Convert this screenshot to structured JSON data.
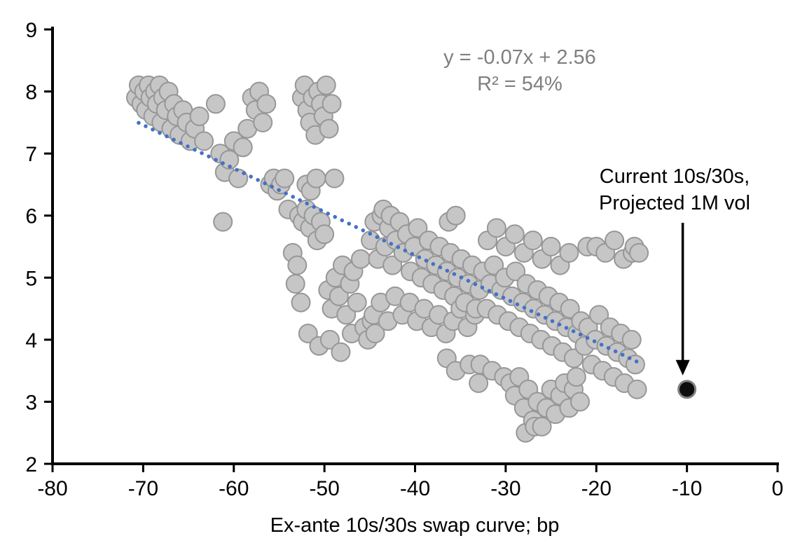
{
  "chart_data": {
    "type": "scatter",
    "title": "",
    "xlabel": "Ex-ante 10s/30s swap curve; bp",
    "ylabel": "",
    "xlim": [
      -80,
      0
    ],
    "ylim": [
      2,
      9
    ],
    "x_ticks": [
      "-80",
      "-70",
      "-60",
      "-50",
      "-40",
      "-30",
      "-20",
      "-10",
      "0"
    ],
    "x_tick_values": [
      -80,
      -70,
      -60,
      -50,
      -40,
      -30,
      -20,
      -10,
      0
    ],
    "y_ticks": [
      "2",
      "3",
      "4",
      "5",
      "6",
      "7",
      "8",
      "9"
    ],
    "y_tick_values": [
      2,
      3,
      4,
      5,
      6,
      7,
      8,
      9
    ],
    "grid": false,
    "legend": "none",
    "series": [
      {
        "name": "historical-observations",
        "marker": {
          "fill": "#c6c6c6",
          "stroke": "#979797",
          "stroke_width": 2,
          "radius": 13
        },
        "points": [
          [
            -70.8,
            7.9
          ],
          [
            -70.5,
            8.1
          ],
          [
            -70.2,
            7.8
          ],
          [
            -69.9,
            8.0
          ],
          [
            -69.7,
            7.7
          ],
          [
            -69.4,
            8.1
          ],
          [
            -69.2,
            7.9
          ],
          [
            -68.9,
            7.6
          ],
          [
            -68.7,
            8.0
          ],
          [
            -68.5,
            7.8
          ],
          [
            -68.2,
            8.1
          ],
          [
            -68.0,
            7.5
          ],
          [
            -67.8,
            7.9
          ],
          [
            -67.5,
            7.7
          ],
          [
            -67.2,
            8.0
          ],
          [
            -66.9,
            7.4
          ],
          [
            -66.6,
            7.8
          ],
          [
            -66.3,
            7.6
          ],
          [
            -66.0,
            7.3
          ],
          [
            -65.6,
            7.7
          ],
          [
            -65.2,
            7.5
          ],
          [
            -64.8,
            7.2
          ],
          [
            -64.3,
            7.4
          ],
          [
            -63.8,
            7.6
          ],
          [
            -63.3,
            7.2
          ],
          [
            -62.0,
            7.8
          ],
          [
            -61.5,
            7.0
          ],
          [
            -61.2,
            5.9
          ],
          [
            -61.0,
            6.7
          ],
          [
            -60.5,
            6.9
          ],
          [
            -60.0,
            7.2
          ],
          [
            -59.5,
            6.6
          ],
          [
            -59.0,
            7.1
          ],
          [
            -58.5,
            7.4
          ],
          [
            -58.0,
            7.9
          ],
          [
            -57.6,
            7.7
          ],
          [
            -57.2,
            8.0
          ],
          [
            -56.8,
            7.5
          ],
          [
            -56.4,
            7.8
          ],
          [
            -56.0,
            6.5
          ],
          [
            -55.6,
            6.6
          ],
          [
            -55.2,
            6.4
          ],
          [
            -54.8,
            6.5
          ],
          [
            -54.4,
            6.6
          ],
          [
            -54.0,
            6.1
          ],
          [
            -52.5,
            7.9
          ],
          [
            -52.2,
            8.1
          ],
          [
            -51.9,
            7.7
          ],
          [
            -51.6,
            7.5
          ],
          [
            -51.3,
            7.9
          ],
          [
            -51.0,
            7.3
          ],
          [
            -50.7,
            8.0
          ],
          [
            -50.4,
            7.8
          ],
          [
            -50.1,
            7.6
          ],
          [
            -49.8,
            8.1
          ],
          [
            -49.5,
            7.4
          ],
          [
            -49.2,
            7.8
          ],
          [
            -48.9,
            6.6
          ],
          [
            -52.0,
            6.5
          ],
          [
            -51.5,
            6.4
          ],
          [
            -50.9,
            6.6
          ],
          [
            -53.5,
            5.4
          ],
          [
            -53.2,
            4.9
          ],
          [
            -53.0,
            5.2
          ],
          [
            -52.8,
            6.0
          ],
          [
            -52.6,
            4.6
          ],
          [
            -52.4,
            5.9
          ],
          [
            -52.0,
            6.1
          ],
          [
            -51.8,
            4.1
          ],
          [
            -51.6,
            5.8
          ],
          [
            -51.2,
            6.0
          ],
          [
            -50.8,
            5.6
          ],
          [
            -50.6,
            3.9
          ],
          [
            -50.4,
            5.9
          ],
          [
            -50.0,
            5.7
          ],
          [
            -49.6,
            4.8
          ],
          [
            -49.4,
            4.0
          ],
          [
            -49.2,
            4.5
          ],
          [
            -48.8,
            5.0
          ],
          [
            -48.4,
            4.7
          ],
          [
            -48.2,
            3.8
          ],
          [
            -48.0,
            5.2
          ],
          [
            -47.6,
            4.4
          ],
          [
            -47.2,
            4.9
          ],
          [
            -47.0,
            4.1
          ],
          [
            -46.8,
            5.1
          ],
          [
            -46.4,
            4.6
          ],
          [
            -46.0,
            5.3
          ],
          [
            -45.6,
            4.2
          ],
          [
            -45.2,
            4.0
          ],
          [
            -44.8,
            4.3
          ],
          [
            -44.4,
            4.1
          ],
          [
            -44.9,
            5.6
          ],
          [
            -44.6,
            4.4
          ],
          [
            -44.5,
            5.9
          ],
          [
            -44.1,
            5.3
          ],
          [
            -43.8,
            4.6
          ],
          [
            -43.7,
            6.0
          ],
          [
            -43.5,
            6.1
          ],
          [
            -43.3,
            5.5
          ],
          [
            -43.0,
            4.3
          ],
          [
            -42.9,
            5.8
          ],
          [
            -42.7,
            6.0
          ],
          [
            -42.5,
            5.2
          ],
          [
            -42.2,
            4.7
          ],
          [
            -42.1,
            5.6
          ],
          [
            -41.7,
            5.9
          ],
          [
            -41.4,
            4.4
          ],
          [
            -41.3,
            5.4
          ],
          [
            -40.9,
            5.7
          ],
          [
            -40.6,
            4.6
          ],
          [
            -40.5,
            5.1
          ],
          [
            -40.1,
            5.5
          ],
          [
            -39.8,
            4.3
          ],
          [
            -39.7,
            5.8
          ],
          [
            -39.3,
            5.0
          ],
          [
            -39.0,
            4.5
          ],
          [
            -38.9,
            5.3
          ],
          [
            -38.5,
            5.6
          ],
          [
            -38.2,
            4.2
          ],
          [
            -38.1,
            4.9
          ],
          [
            -37.7,
            5.2
          ],
          [
            -37.4,
            4.4
          ],
          [
            -37.3,
            5.5
          ],
          [
            -36.9,
            4.8
          ],
          [
            -36.6,
            4.1
          ],
          [
            -36.5,
            5.1
          ],
          [
            -36.3,
            5.9
          ],
          [
            -36.1,
            5.4
          ],
          [
            -35.8,
            4.3
          ],
          [
            -35.7,
            4.7
          ],
          [
            -35.5,
            6.0
          ],
          [
            -35.3,
            5.0
          ],
          [
            -35.0,
            4.5
          ],
          [
            -34.9,
            5.3
          ],
          [
            -34.5,
            4.6
          ],
          [
            -34.2,
            4.2
          ],
          [
            -34.1,
            4.9
          ],
          [
            -33.7,
            5.2
          ],
          [
            -33.4,
            4.4
          ],
          [
            -33.3,
            4.5
          ],
          [
            -36.5,
            3.7
          ],
          [
            -35.5,
            3.5
          ],
          [
            -34.0,
            3.6
          ],
          [
            -33.0,
            3.3
          ],
          [
            -32.8,
            3.6
          ],
          [
            -31.5,
            3.5
          ],
          [
            -32.9,
            4.8
          ],
          [
            -32.5,
            5.1
          ],
          [
            -32.1,
            4.5
          ],
          [
            -32.0,
            5.6
          ],
          [
            -31.7,
            4.9
          ],
          [
            -31.3,
            5.2
          ],
          [
            -31.0,
            5.8
          ],
          [
            -30.9,
            4.4
          ],
          [
            -30.5,
            4.8
          ],
          [
            -30.1,
            5.0
          ],
          [
            -30.0,
            5.5
          ],
          [
            -29.7,
            4.3
          ],
          [
            -29.3,
            4.7
          ],
          [
            -29.0,
            5.7
          ],
          [
            -28.9,
            5.1
          ],
          [
            -28.5,
            4.2
          ],
          [
            -28.1,
            4.6
          ],
          [
            -28.0,
            5.4
          ],
          [
            -27.7,
            4.9
          ],
          [
            -27.3,
            4.1
          ],
          [
            -27.0,
            5.6
          ],
          [
            -26.9,
            4.5
          ],
          [
            -26.5,
            4.8
          ],
          [
            -26.1,
            4.0
          ],
          [
            -26.0,
            5.3
          ],
          [
            -25.7,
            4.4
          ],
          [
            -25.3,
            4.7
          ],
          [
            -25.0,
            5.5
          ],
          [
            -24.9,
            3.9
          ],
          [
            -24.5,
            4.3
          ],
          [
            -24.1,
            4.6
          ],
          [
            -24.0,
            5.2
          ],
          [
            -23.7,
            3.8
          ],
          [
            -23.3,
            4.2
          ],
          [
            -23.0,
            5.4
          ],
          [
            -22.9,
            4.5
          ],
          [
            -22.5,
            3.7
          ],
          [
            -22.1,
            4.1
          ],
          [
            -21.7,
            4.3
          ],
          [
            -21.3,
            3.9
          ],
          [
            -21.0,
            5.5
          ],
          [
            -20.9,
            4.2
          ],
          [
            -20.5,
            3.6
          ],
          [
            -20.1,
            4.0
          ],
          [
            -20.0,
            5.5
          ],
          [
            -19.7,
            4.4
          ],
          [
            -19.3,
            3.5
          ],
          [
            -19.0,
            5.4
          ],
          [
            -18.9,
            3.9
          ],
          [
            -18.5,
            4.2
          ],
          [
            -18.1,
            3.4
          ],
          [
            -18.0,
            5.6
          ],
          [
            -17.7,
            3.8
          ],
          [
            -17.3,
            4.1
          ],
          [
            -17.0,
            5.3
          ],
          [
            -16.9,
            3.3
          ],
          [
            -16.5,
            3.7
          ],
          [
            -16.1,
            4.0
          ],
          [
            -16.0,
            5.4
          ],
          [
            -15.8,
            5.5
          ],
          [
            -15.7,
            3.6
          ],
          [
            -15.5,
            3.2
          ],
          [
            -15.3,
            5.4
          ],
          [
            -30.2,
            3.4
          ],
          [
            -29.5,
            3.3
          ],
          [
            -29.0,
            3.1
          ],
          [
            -28.5,
            3.4
          ],
          [
            -28.0,
            2.9
          ],
          [
            -27.8,
            2.5
          ],
          [
            -27.5,
            3.2
          ],
          [
            -27.0,
            2.7
          ],
          [
            -26.8,
            2.6
          ],
          [
            -26.5,
            3.0
          ],
          [
            -26.0,
            2.6
          ],
          [
            -25.5,
            2.9
          ],
          [
            -25.0,
            3.2
          ],
          [
            -24.5,
            2.8
          ],
          [
            -24.0,
            3.1
          ],
          [
            -23.5,
            3.3
          ],
          [
            -23.0,
            2.9
          ],
          [
            -22.5,
            3.2
          ],
          [
            -22.2,
            3.4
          ],
          [
            -21.8,
            3.0
          ]
        ]
      },
      {
        "name": "current-point",
        "marker": {
          "fill": "#0d0d0d",
          "stroke": "#7f7f7f",
          "stroke_width": 3,
          "radius": 12
        },
        "points": [
          [
            -10,
            3.2
          ]
        ]
      }
    ],
    "trendline": {
      "equation_text": "y = -0.07x + 2.56",
      "r2_text": "R² = 54%",
      "slope": -0.07,
      "intercept": 2.56,
      "x_range": [
        -70.5,
        -15.2
      ],
      "color": "#4472c4",
      "style": "dotted"
    },
    "annotation": {
      "line1": "Current 10s/30s,",
      "line2": "Projected 1M vol",
      "target": [
        -10,
        3.2
      ],
      "arrow_color": "#000000"
    },
    "axis_color": "#000000",
    "tick_label_color": "#000000",
    "equation_color": "#7f7f7f"
  }
}
